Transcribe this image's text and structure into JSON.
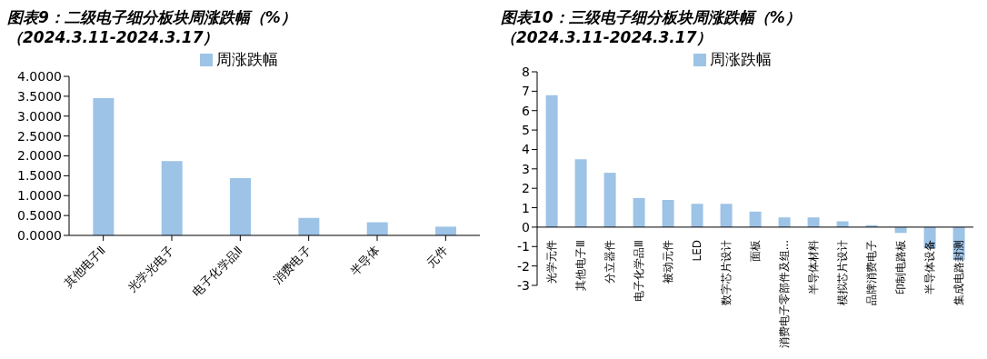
{
  "chart_data": [
    {
      "type": "bar",
      "title": "图表9：二级电子细分板块周涨跌幅（%）",
      "subtitle": "（2024.3.11-2024.3.17）",
      "categories": [
        "其他电子Ⅱ",
        "光学光电子",
        "电子化学品Ⅱ",
        "消费电子",
        "半导体",
        "元件"
      ],
      "series": [
        {
          "name": "周涨跌幅",
          "color": "#9dc3e6",
          "values": [
            3.45,
            1.87,
            1.44,
            0.44,
            0.33,
            0.22
          ]
        }
      ],
      "ylim": [
        0,
        4
      ],
      "yticks": [
        {
          "value": 0,
          "label": "0.0000"
        },
        {
          "value": 0.5,
          "label": "0.5000"
        },
        {
          "value": 1,
          "label": "1.0000"
        },
        {
          "value": 1.5,
          "label": "1.5000"
        },
        {
          "value": 2,
          "label": "2.0000"
        },
        {
          "value": 2.5,
          "label": "2.5000"
        },
        {
          "value": 3,
          "label": "3.0000"
        },
        {
          "value": 3.5,
          "label": "3.5000"
        },
        {
          "value": 4,
          "label": "4.0000"
        }
      ],
      "legend": "top",
      "grid": false
    },
    {
      "type": "bar",
      "title": "图表10：三级电子细分板块周涨跌幅（%）",
      "subtitle": "（2024.3.11-2024.3.17）",
      "categories": [
        "光学元件",
        "其他电子Ⅲ",
        "分立器件",
        "电子化学品Ⅲ",
        "被动元件",
        "LED",
        "数字芯片设计",
        "面板",
        "消费电子零部件及组...",
        "半导体材料",
        "模拟芯片设计",
        "品牌消费电子",
        "印制电路板",
        "半导体设备",
        "集成电路封测"
      ],
      "series": [
        {
          "name": "周涨跌幅",
          "color": "#9dc3e6",
          "values": [
            6.8,
            3.5,
            2.8,
            1.5,
            1.4,
            1.2,
            1.2,
            0.8,
            0.5,
            0.5,
            0.3,
            0.1,
            -0.3,
            -1.1,
            -1.7
          ]
        }
      ],
      "ylim": [
        -3,
        8
      ],
      "yticks": [
        -3,
        -2,
        -1,
        0,
        1,
        2,
        3,
        4,
        5,
        6,
        7,
        8
      ],
      "legend": "top",
      "grid": false
    }
  ]
}
